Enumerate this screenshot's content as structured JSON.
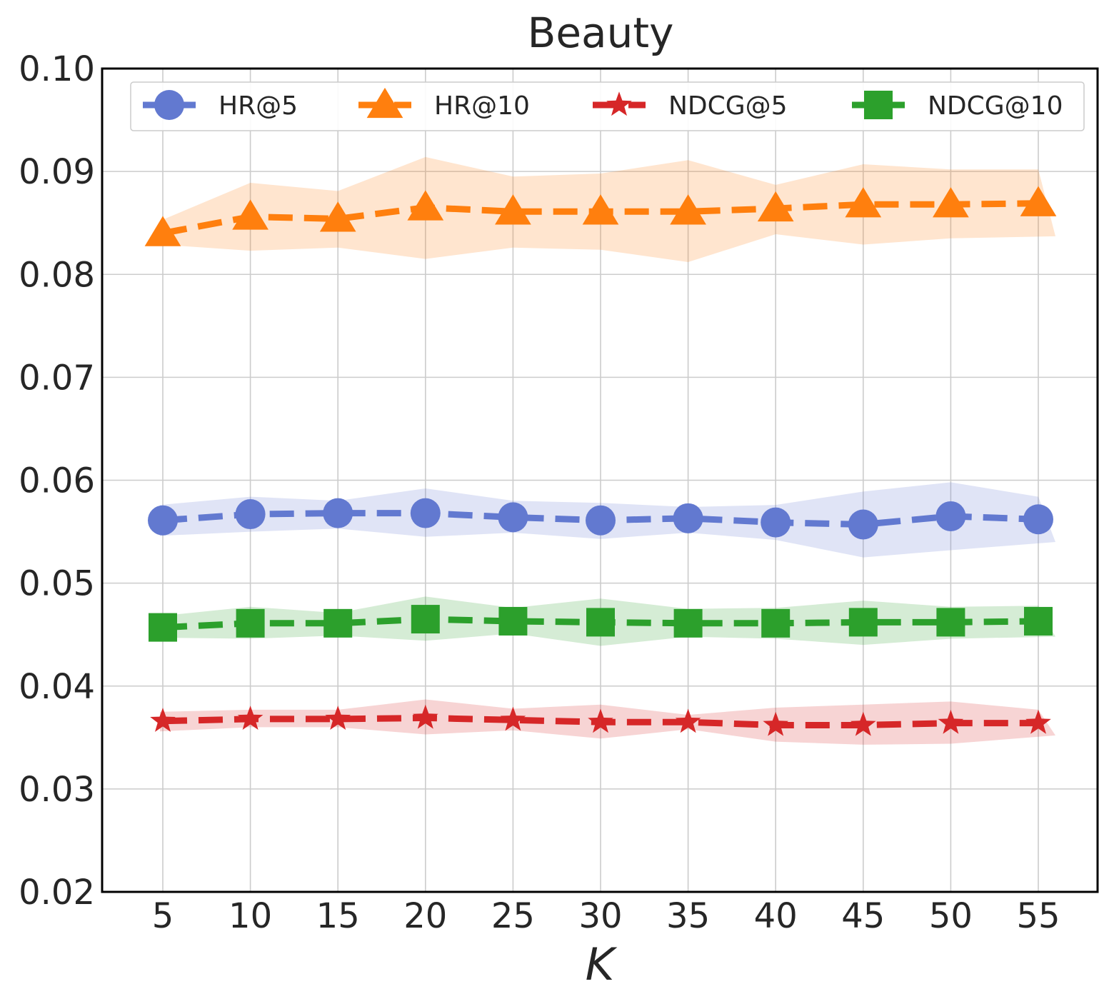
{
  "chart_data": {
    "type": "line",
    "title": "Beauty",
    "xlabel": "K",
    "ylabel": "",
    "x": [
      5,
      10,
      15,
      20,
      25,
      30,
      35,
      40,
      45,
      50,
      55
    ],
    "ylim": [
      0.02,
      0.1
    ],
    "yticks": [
      "0.02",
      "0.03",
      "0.04",
      "0.05",
      "0.06",
      "0.07",
      "0.08",
      "0.09",
      "0.10"
    ],
    "xticks": [
      "5",
      "10",
      "15",
      "20",
      "25",
      "30",
      "35",
      "40",
      "45",
      "50",
      "55"
    ],
    "grid": true,
    "legend_position": "top",
    "series": [
      {
        "name": "HR@5",
        "color": "#6279d0",
        "marker": "circle",
        "linestyle": "dashed",
        "values": [
          0.0561,
          0.0567,
          0.0568,
          0.0568,
          0.0564,
          0.0561,
          0.0563,
          0.0559,
          0.0557,
          0.0565,
          0.0562
        ],
        "lower": [
          0.0546,
          0.055,
          0.0553,
          0.0545,
          0.0549,
          0.0543,
          0.0549,
          0.0542,
          0.0525,
          0.0532,
          0.054
        ],
        "upper": [
          0.0576,
          0.0584,
          0.058,
          0.0592,
          0.058,
          0.0578,
          0.0574,
          0.0576,
          0.0589,
          0.0598,
          0.0584
        ]
      },
      {
        "name": "HR@10",
        "color": "#ff7f0e",
        "marker": "triangle",
        "linestyle": "dashed",
        "values": [
          0.084,
          0.0856,
          0.0854,
          0.0865,
          0.0861,
          0.0861,
          0.0861,
          0.0864,
          0.0868,
          0.0868,
          0.0869
        ],
        "lower": [
          0.0829,
          0.0823,
          0.0826,
          0.0815,
          0.0826,
          0.0824,
          0.0812,
          0.0839,
          0.0829,
          0.0835,
          0.0837
        ],
        "upper": [
          0.0852,
          0.0889,
          0.0881,
          0.0914,
          0.0895,
          0.0898,
          0.0911,
          0.0887,
          0.0907,
          0.0902,
          0.0902
        ]
      },
      {
        "name": "NDCG@5",
        "color": "#d62728",
        "marker": "star",
        "linestyle": "dashed",
        "values": [
          0.0366,
          0.0368,
          0.0368,
          0.0369,
          0.0367,
          0.0365,
          0.0365,
          0.0362,
          0.0362,
          0.0364,
          0.0364
        ],
        "lower": [
          0.0356,
          0.036,
          0.036,
          0.0353,
          0.0357,
          0.0349,
          0.0358,
          0.0346,
          0.0343,
          0.0344,
          0.0352
        ],
        "upper": [
          0.0375,
          0.0377,
          0.0377,
          0.0387,
          0.0378,
          0.0382,
          0.0372,
          0.0379,
          0.0382,
          0.0385,
          0.0377
        ]
      },
      {
        "name": "NDCG@10",
        "color": "#2ca02c",
        "marker": "square",
        "linestyle": "dashed",
        "values": [
          0.0457,
          0.0461,
          0.0461,
          0.0465,
          0.0463,
          0.0462,
          0.0461,
          0.0461,
          0.0462,
          0.0462,
          0.0463
        ],
        "lower": [
          0.0447,
          0.0446,
          0.0449,
          0.0444,
          0.0451,
          0.0439,
          0.0448,
          0.0446,
          0.044,
          0.0446,
          0.0448
        ],
        "upper": [
          0.0468,
          0.0477,
          0.0471,
          0.0487,
          0.0476,
          0.0485,
          0.0475,
          0.0476,
          0.0483,
          0.0477,
          0.0478
        ]
      }
    ]
  }
}
